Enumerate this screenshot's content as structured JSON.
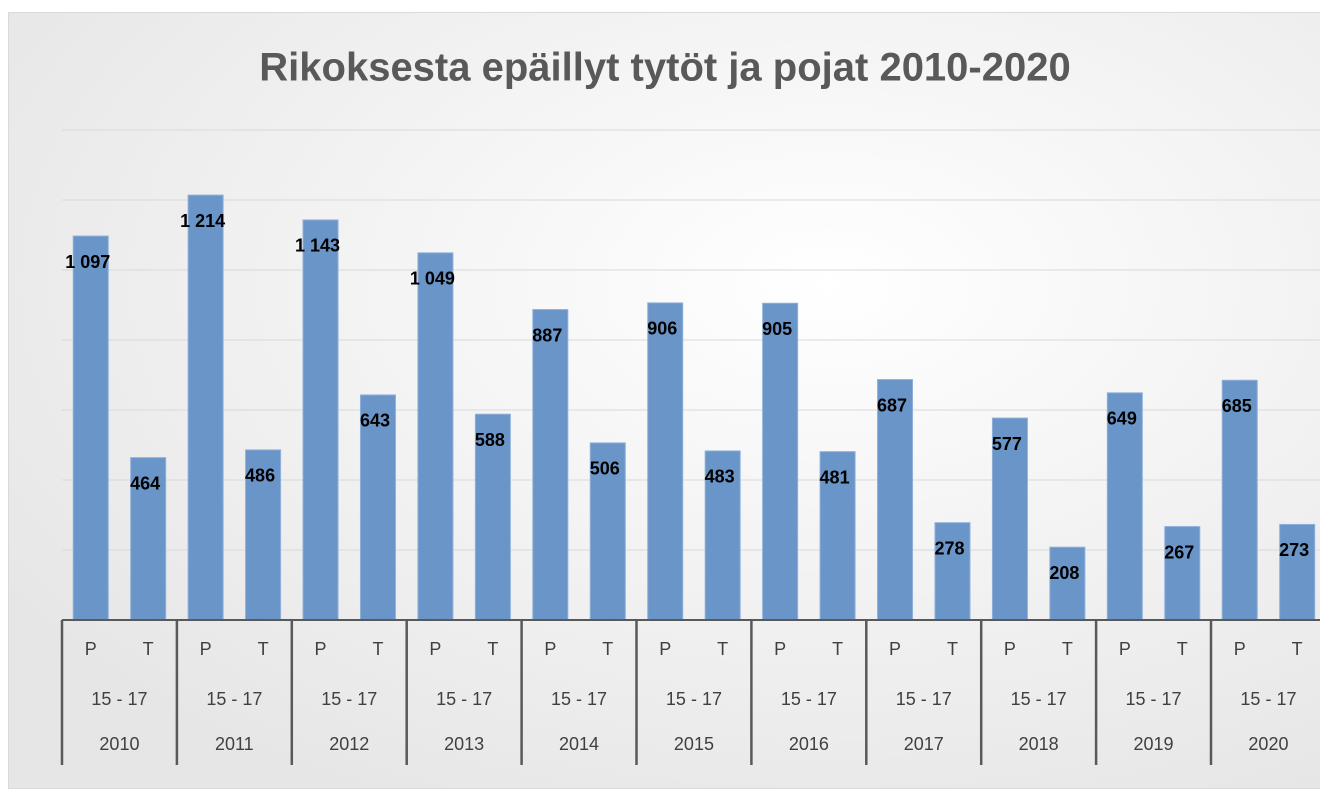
{
  "chart_data": {
    "type": "bar",
    "title": "Rikoksesta epäillyt tytöt ja pojat 2010-2020",
    "categories": [
      "P",
      "T",
      "P",
      "T",
      "P",
      "T",
      "P",
      "T",
      "P",
      "T",
      "P",
      "T",
      "P",
      "T",
      "P",
      "T",
      "P",
      "T",
      "P",
      "T",
      "P",
      "T"
    ],
    "groups": [
      {
        "label": "2010",
        "sublabel": "15 - 17"
      },
      {
        "label": "2011",
        "sublabel": "15 - 17"
      },
      {
        "label": "2012",
        "sublabel": "15 - 17"
      },
      {
        "label": "2013",
        "sublabel": "15 - 17"
      },
      {
        "label": "2014",
        "sublabel": "15 - 17"
      },
      {
        "label": "2015",
        "sublabel": "15 - 17"
      },
      {
        "label": "2016",
        "sublabel": "15 - 17"
      },
      {
        "label": "2017",
        "sublabel": "15 - 17"
      },
      {
        "label": "2018",
        "sublabel": "15 - 17"
      },
      {
        "label": "2019",
        "sublabel": "15 - 17"
      },
      {
        "label": "2020",
        "sublabel": "15 - 17"
      }
    ],
    "values": [
      1097,
      464,
      1214,
      486,
      1143,
      643,
      1049,
      588,
      887,
      506,
      906,
      483,
      905,
      481,
      687,
      278,
      577,
      208,
      649,
      267,
      685,
      273
    ],
    "value_labels": [
      "1 097",
      "464",
      "1 214",
      "486",
      "1 143",
      "643",
      "1 049",
      "588",
      "887",
      "506",
      "906",
      "483",
      "905",
      "481",
      "687",
      "278",
      "577",
      "208",
      "649",
      "267",
      "685",
      "273"
    ],
    "color": "#6a95c9",
    "ylim": [
      0,
      1400
    ],
    "yticks": [
      0,
      200,
      400,
      600,
      800,
      1000,
      1200,
      1400
    ],
    "grid": true
  }
}
